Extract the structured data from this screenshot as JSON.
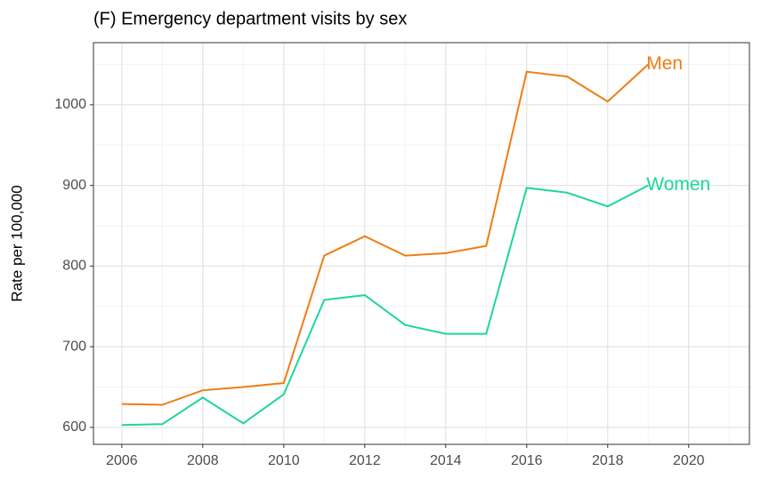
{
  "chart_data": {
    "type": "line",
    "title": "(F) Emergency department visits by sex",
    "y_label": "Rate per 100,000",
    "x": [
      2006,
      2007,
      2008,
      2009,
      2010,
      2011,
      2012,
      2013,
      2014,
      2015,
      2016,
      2017,
      2018,
      2019
    ],
    "series": [
      {
        "name": "Men",
        "color": "#ef7d12",
        "values": [
          629,
          628,
          646,
          650,
          655,
          813,
          837,
          813,
          816,
          825,
          1041,
          1035,
          1004,
          1050
        ]
      },
      {
        "name": "Women",
        "color": "#1dd69d",
        "values": [
          603,
          604,
          637,
          605,
          641,
          758,
          764,
          727,
          716,
          716,
          897,
          891,
          874,
          900
        ]
      }
    ],
    "xlim": [
      2005.3,
      2021.5
    ],
    "xticks": [
      2006,
      2008,
      2010,
      2012,
      2014,
      2016,
      2018,
      2020
    ],
    "ylim": [
      579,
      1077
    ],
    "yticks": [
      600,
      700,
      800,
      900,
      1000
    ],
    "grid": true
  }
}
